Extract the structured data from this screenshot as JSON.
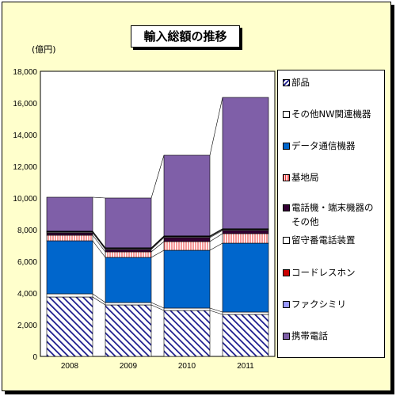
{
  "title": "輸入総額の推移",
  "unit_label": "(億円)",
  "colors": {
    "background": "#ffffcc",
    "parts": "#1a1a8c",
    "other_nw": "#ffffff",
    "data_comm": "#0066cc",
    "base_station": "#ff9999",
    "phone_terminal": "#330033",
    "answering_machine": "#ffffff",
    "cordless": "#cc0000",
    "fax": "#9999ff",
    "mobile": "#7f5fa8"
  },
  "chart_data": {
    "type": "bar",
    "stacked": true,
    "categories": [
      "2008",
      "2009",
      "2010",
      "2011"
    ],
    "ylim": [
      0,
      18000
    ],
    "yticks": [
      "0",
      "2,000",
      "4,000",
      "6,000",
      "8,000",
      "10,000",
      "12,000",
      "14,000",
      "16,000",
      "18,000"
    ],
    "grid": false,
    "legend_position": "right",
    "series": [
      {
        "name": "部品",
        "key": "parts",
        "values": [
          3750,
          3250,
          2900,
          2650
        ]
      },
      {
        "name": "その他NW関連機器",
        "key": "other_nw",
        "values": [
          200,
          150,
          150,
          150
        ]
      },
      {
        "name": "データ通信機器",
        "key": "data_comm",
        "values": [
          3350,
          2850,
          3650,
          4350
        ]
      },
      {
        "name": "基地局",
        "key": "base_station",
        "values": [
          350,
          350,
          550,
          600
        ]
      },
      {
        "name": "電話機・端末機器のその他",
        "key": "phone_terminal",
        "values": [
          150,
          150,
          250,
          200
        ]
      },
      {
        "name": "留守番電話装置",
        "key": "answering_machine",
        "values": [
          50,
          50,
          50,
          50
        ]
      },
      {
        "name": "コードレスホン",
        "key": "cordless",
        "values": [
          30,
          30,
          30,
          30
        ]
      },
      {
        "name": "ファクシミリ",
        "key": "fax",
        "values": [
          30,
          30,
          30,
          30
        ]
      },
      {
        "name": "携帯電話",
        "key": "mobile",
        "values": [
          2140,
          3140,
          5090,
          8290
        ]
      }
    ]
  }
}
